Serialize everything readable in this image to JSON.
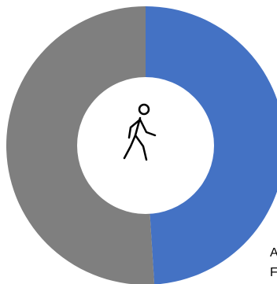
{
  "chart_data": {
    "type": "donut",
    "series": [
      {
        "color": "#4472c4",
        "values": [
          49
        ]
      },
      {
        "color": "#7f7f7f",
        "values": [
          51
        ]
      }
    ],
    "annotations": [
      "A",
      "F"
    ]
  }
}
